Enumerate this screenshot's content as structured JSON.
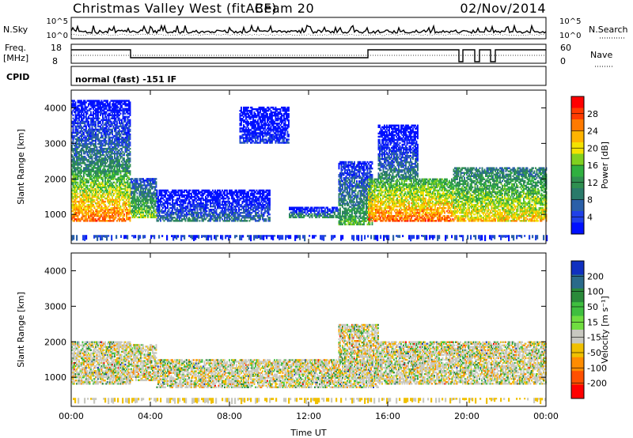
{
  "header": {
    "title": "Christmas Valley West (fitACF)",
    "beam": "Beam 20",
    "date": "02/Nov/2014"
  },
  "strip_nsky": {
    "left_label": "N.Sky",
    "right_label": "N.Search",
    "left_ticks": [
      "10^5",
      "10^0"
    ],
    "right_ticks": [
      "10^5",
      "10^0"
    ]
  },
  "strip_freq": {
    "left_label_top": "Freq.",
    "left_label_bottom": "[MHz]",
    "right_label": "Nave",
    "left_ticks": [
      "18",
      "8"
    ],
    "right_ticks": [
      "60",
      "0"
    ]
  },
  "cpid": {
    "label": "CPID",
    "value": "normal (fast) -151 IF"
  },
  "chart_data": [
    {
      "type": "heatmap",
      "name": "Power panel",
      "ylabel": "Slant Range [km]",
      "yticks": [
        1000,
        2000,
        3000,
        4000
      ],
      "ylim": [
        180,
        4500
      ],
      "xlim": [
        0,
        24
      ],
      "xticks_hours": [
        0,
        4,
        8,
        12,
        16,
        20,
        24
      ],
      "colorbar": {
        "label": "Power [dB]",
        "tick_labels": [
          "28",
          "24",
          "20",
          "16",
          "12",
          "8",
          "4"
        ],
        "colors": [
          "#ff0000",
          "#ff3b00",
          "#ff7a00",
          "#ffb300",
          "#f3e200",
          "#80d020",
          "#30b040",
          "#2f8f50",
          "#2a7a6a",
          "#2a5fa8",
          "#2040e8",
          "#0010ff"
        ]
      },
      "regions": [
        {
          "t0": 0.0,
          "t1": 3.0,
          "r0": 800,
          "r1": 2200,
          "level": 0.85
        },
        {
          "t0": 0.0,
          "t1": 3.0,
          "r0": 2200,
          "r1": 4200,
          "level": 0.35
        },
        {
          "t0": 3.0,
          "t1": 4.3,
          "r0": 900,
          "r1": 2000,
          "level": 0.55
        },
        {
          "t0": 4.3,
          "t1": 10.0,
          "r0": 800,
          "r1": 1700,
          "level": 0.25
        },
        {
          "t0": 8.5,
          "t1": 11.0,
          "r0": 3000,
          "r1": 4000,
          "level": 0.1
        },
        {
          "t0": 11.0,
          "t1": 13.5,
          "r0": 900,
          "r1": 1200,
          "level": 0.35
        },
        {
          "t0": 13.5,
          "t1": 15.2,
          "r0": 700,
          "r1": 2500,
          "level": 0.45
        },
        {
          "t0": 15.0,
          "t1": 19.3,
          "r0": 800,
          "r1": 2000,
          "level": 0.85
        },
        {
          "t0": 15.5,
          "t1": 17.5,
          "r0": 2000,
          "r1": 3500,
          "level": 0.3
        },
        {
          "t0": 19.3,
          "t1": 24.0,
          "r0": 800,
          "r1": 2300,
          "level": 0.7
        }
      ]
    },
    {
      "type": "heatmap",
      "name": "Velocity panel",
      "ylabel": "Slant Range [km]",
      "xlabel": "Time UT",
      "yticks": [
        1000,
        2000,
        3000,
        4000
      ],
      "ylim": [
        180,
        4500
      ],
      "xlim": [
        0,
        24
      ],
      "xticks": [
        "00:00",
        "04:00",
        "08:00",
        "12:00",
        "16:00",
        "20:00",
        "00:00"
      ],
      "xticks_hours": [
        0,
        4,
        8,
        12,
        16,
        20,
        24
      ],
      "colorbar": {
        "label": "Velocity [m s⁻¹]",
        "tick_labels": [
          "200",
          "100",
          "50",
          "15",
          "-15",
          "-50",
          "-100",
          "-200"
        ],
        "colors": [
          "#1030c0",
          "#2a6a8a",
          "#2a8a3a",
          "#3fbf3f",
          "#70dd40",
          "#c8c8c0",
          "#f0c000",
          "#ff8c00",
          "#ff5000",
          "#ff0000"
        ]
      },
      "regions": [
        {
          "t0": 0.0,
          "t1": 3.0,
          "r0": 800,
          "r1": 2000,
          "level": 0.5
        },
        {
          "t0": 3.0,
          "t1": 4.3,
          "r0": 900,
          "r1": 1900,
          "level": 0.5
        },
        {
          "t0": 4.3,
          "t1": 13.5,
          "r0": 700,
          "r1": 1500,
          "level": 0.3
        },
        {
          "t0": 13.5,
          "t1": 15.5,
          "r0": 700,
          "r1": 2500,
          "level": 0.15
        },
        {
          "t0": 15.5,
          "t1": 24.0,
          "r0": 800,
          "r1": 2000,
          "level": 0.5
        }
      ]
    }
  ]
}
